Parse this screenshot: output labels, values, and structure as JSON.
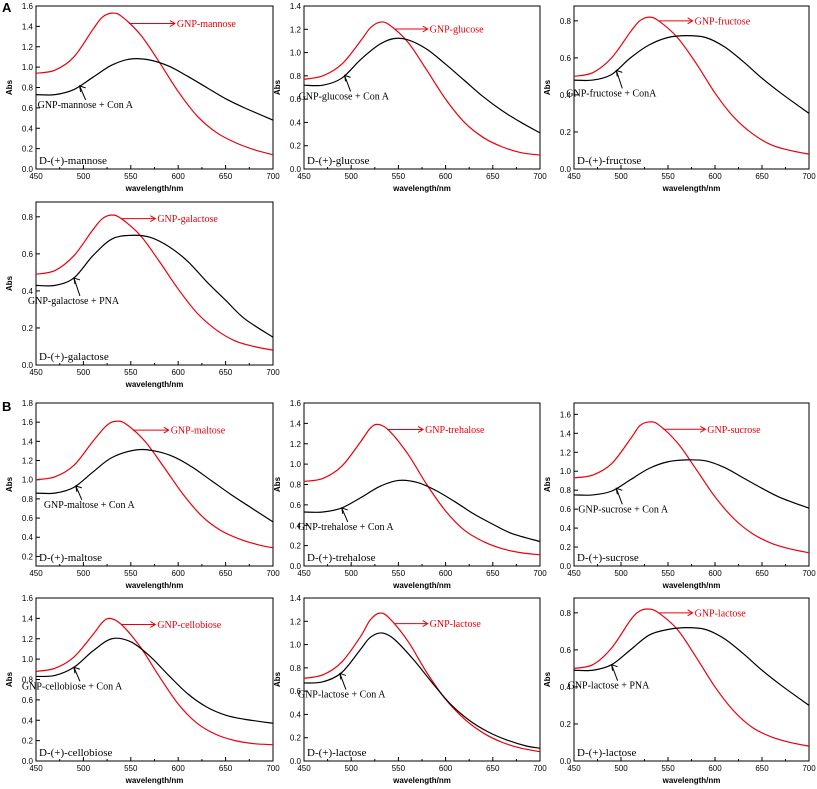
{
  "colors": {
    "free": "#e8000b",
    "bound": "#000000",
    "axis": "#000000"
  },
  "figure": {
    "panel_labels": [
      "A",
      "B"
    ]
  },
  "chart_data": [
    {
      "type": "line",
      "panel": "A",
      "sugar_label": "D-(+)-mannose",
      "xlabel": "wavelength/nm",
      "ylabel": "Abs",
      "xlim": [
        450,
        700
      ],
      "ylim": [
        0.0,
        1.6
      ],
      "xticks": [
        450,
        500,
        550,
        600,
        650,
        700
      ],
      "yticks": [
        0.0,
        0.2,
        0.4,
        0.6,
        0.8,
        1.0,
        1.2,
        1.4,
        1.6
      ],
      "series": [
        {
          "name": "GNP-mannose",
          "x": [
            450,
            470,
            490,
            510,
            520,
            530,
            540,
            560,
            580,
            600,
            620,
            640,
            660,
            680,
            700
          ],
          "y": [
            0.94,
            0.97,
            1.1,
            1.37,
            1.49,
            1.53,
            1.5,
            1.32,
            1.05,
            0.76,
            0.52,
            0.36,
            0.26,
            0.19,
            0.14
          ]
        },
        {
          "name": "GNP-mannose + Con A",
          "x": [
            450,
            470,
            490,
            510,
            530,
            550,
            570,
            590,
            610,
            630,
            650,
            670,
            700
          ],
          "y": [
            0.73,
            0.73,
            0.78,
            0.9,
            1.02,
            1.08,
            1.07,
            1.01,
            0.91,
            0.8,
            0.69,
            0.6,
            0.48
          ]
        }
      ]
    },
    {
      "type": "line",
      "panel": "A",
      "sugar_label": "D-(+)-glucose",
      "xlabel": "wavelength/nm",
      "ylabel": "Abs",
      "xlim": [
        450,
        700
      ],
      "ylim": [
        0.0,
        1.4
      ],
      "xticks": [
        450,
        500,
        550,
        600,
        650,
        700
      ],
      "yticks": [
        0.0,
        0.2,
        0.4,
        0.6,
        0.8,
        1.0,
        1.2,
        1.4
      ],
      "series": [
        {
          "name": "GNP-glucose",
          "x": [
            450,
            470,
            490,
            510,
            520,
            530,
            540,
            560,
            580,
            600,
            620,
            640,
            660,
            680,
            700
          ],
          "y": [
            0.77,
            0.8,
            0.9,
            1.1,
            1.21,
            1.26,
            1.24,
            1.09,
            0.85,
            0.6,
            0.4,
            0.27,
            0.19,
            0.14,
            0.12
          ]
        },
        {
          "name": "GNP-glucose + Con A",
          "x": [
            450,
            470,
            490,
            510,
            530,
            545,
            560,
            580,
            600,
            620,
            640,
            660,
            680,
            700
          ],
          "y": [
            0.72,
            0.72,
            0.78,
            0.94,
            1.07,
            1.12,
            1.11,
            1.03,
            0.9,
            0.76,
            0.62,
            0.5,
            0.4,
            0.31
          ]
        }
      ]
    },
    {
      "type": "line",
      "panel": "A",
      "sugar_label": "D-(+)-fructose",
      "xlabel": "wavelength/nm",
      "ylabel": "Abs",
      "xlim": [
        450,
        700
      ],
      "ylim": [
        0.0,
        0.88
      ],
      "xticks": [
        450,
        500,
        550,
        600,
        650,
        700
      ],
      "yticks": [
        0.0,
        0.2,
        0.4,
        0.6,
        0.8
      ],
      "series": [
        {
          "name": "GNP-fructose",
          "x": [
            450,
            470,
            490,
            510,
            520,
            530,
            540,
            560,
            580,
            600,
            620,
            640,
            660,
            680,
            700
          ],
          "y": [
            0.5,
            0.52,
            0.6,
            0.74,
            0.8,
            0.82,
            0.8,
            0.71,
            0.57,
            0.41,
            0.28,
            0.19,
            0.13,
            0.1,
            0.08
          ]
        },
        {
          "name": "GNP-fructose + ConA",
          "x": [
            450,
            470,
            490,
            510,
            530,
            550,
            570,
            590,
            610,
            630,
            650,
            670,
            700
          ],
          "y": [
            0.48,
            0.48,
            0.51,
            0.6,
            0.67,
            0.71,
            0.72,
            0.71,
            0.66,
            0.58,
            0.49,
            0.41,
            0.3
          ]
        }
      ]
    },
    {
      "type": "line",
      "panel": "A",
      "sugar_label": "D-(+)-galactose",
      "xlabel": "wavelength/nm",
      "ylabel": "Abs",
      "xlim": [
        450,
        700
      ],
      "ylim": [
        0.0,
        0.88
      ],
      "xticks": [
        450,
        500,
        550,
        600,
        650,
        700
      ],
      "yticks": [
        0.0,
        0.2,
        0.4,
        0.6,
        0.8
      ],
      "series": [
        {
          "name": "GNP-galactose",
          "x": [
            450,
            470,
            490,
            510,
            520,
            530,
            540,
            560,
            580,
            600,
            620,
            640,
            660,
            680,
            700
          ],
          "y": [
            0.49,
            0.51,
            0.59,
            0.73,
            0.79,
            0.81,
            0.79,
            0.7,
            0.56,
            0.41,
            0.28,
            0.19,
            0.13,
            0.1,
            0.08
          ]
        },
        {
          "name": "GNP-galactose + PNA",
          "x": [
            450,
            470,
            490,
            510,
            530,
            550,
            570,
            590,
            610,
            630,
            650,
            670,
            700
          ],
          "y": [
            0.43,
            0.43,
            0.47,
            0.59,
            0.68,
            0.7,
            0.69,
            0.64,
            0.56,
            0.45,
            0.35,
            0.25,
            0.15
          ]
        }
      ]
    },
    {
      "type": "line",
      "panel": "B",
      "sugar_label": "D-(+)-maltose",
      "xlabel": "wavelength/nm",
      "ylabel": "Abs",
      "xlim": [
        450,
        700
      ],
      "ylim": [
        0.1,
        1.8
      ],
      "xticks": [
        450,
        500,
        550,
        600,
        650,
        700
      ],
      "yticks": [
        0.2,
        0.4,
        0.6,
        0.8,
        1.0,
        1.2,
        1.4,
        1.6,
        1.8
      ],
      "series": [
        {
          "name": "GNP-maltose",
          "x": [
            450,
            470,
            490,
            510,
            525,
            535,
            545,
            565,
            585,
            605,
            625,
            645,
            665,
            685,
            700
          ],
          "y": [
            1.0,
            1.03,
            1.15,
            1.4,
            1.57,
            1.61,
            1.58,
            1.4,
            1.13,
            0.85,
            0.62,
            0.47,
            0.38,
            0.32,
            0.29
          ]
        },
        {
          "name": "GNP-maltose + Con A",
          "x": [
            450,
            470,
            490,
            510,
            530,
            555,
            575,
            595,
            615,
            635,
            655,
            675,
            700
          ],
          "y": [
            0.86,
            0.86,
            0.92,
            1.08,
            1.23,
            1.31,
            1.3,
            1.24,
            1.13,
            0.99,
            0.85,
            0.72,
            0.56
          ]
        }
      ]
    },
    {
      "type": "line",
      "panel": "B",
      "sugar_label": "D-(+)-trehalose",
      "xlabel": "wavelength/nm",
      "ylabel": "Abs",
      "xlim": [
        450,
        700
      ],
      "ylim": [
        0.0,
        1.6
      ],
      "xticks": [
        450,
        500,
        550,
        600,
        650,
        700
      ],
      "yticks": [
        0.0,
        0.2,
        0.4,
        0.6,
        0.8,
        1.0,
        1.2,
        1.4,
        1.6
      ],
      "series": [
        {
          "name": "GNP-trehalose",
          "x": [
            450,
            470,
            490,
            510,
            520,
            528,
            540,
            560,
            580,
            600,
            620,
            640,
            660,
            680,
            700
          ],
          "y": [
            0.83,
            0.86,
            0.98,
            1.22,
            1.35,
            1.39,
            1.33,
            1.1,
            0.8,
            0.54,
            0.35,
            0.24,
            0.17,
            0.13,
            0.11
          ]
        },
        {
          "name": "GNP-trehalose + Con A",
          "x": [
            450,
            470,
            490,
            510,
            530,
            550,
            570,
            590,
            610,
            630,
            650,
            670,
            700
          ],
          "y": [
            0.53,
            0.53,
            0.57,
            0.67,
            0.78,
            0.84,
            0.82,
            0.74,
            0.63,
            0.51,
            0.41,
            0.32,
            0.24
          ]
        }
      ]
    },
    {
      "type": "line",
      "panel": "B",
      "sugar_label": "D-(+)-sucrose",
      "xlabel": "wavelength/nm",
      "ylabel": "Abs",
      "xlim": [
        450,
        700
      ],
      "ylim": [
        0.0,
        1.72
      ],
      "xticks": [
        450,
        500,
        550,
        600,
        650,
        700
      ],
      "yticks": [
        0.0,
        0.2,
        0.4,
        0.6,
        0.8,
        1.0,
        1.2,
        1.4,
        1.6
      ],
      "series": [
        {
          "name": "GNP-sucrose",
          "x": [
            450,
            470,
            490,
            510,
            520,
            530,
            540,
            560,
            580,
            600,
            620,
            640,
            660,
            680,
            700
          ],
          "y": [
            0.93,
            0.96,
            1.08,
            1.34,
            1.48,
            1.52,
            1.49,
            1.3,
            1.02,
            0.73,
            0.5,
            0.34,
            0.24,
            0.18,
            0.14
          ]
        },
        {
          "name": "GNP-sucrose + Con A",
          "x": [
            450,
            470,
            490,
            510,
            530,
            550,
            570,
            590,
            610,
            630,
            650,
            670,
            700
          ],
          "y": [
            0.75,
            0.75,
            0.79,
            0.91,
            1.03,
            1.1,
            1.12,
            1.11,
            1.04,
            0.93,
            0.82,
            0.72,
            0.61
          ]
        }
      ]
    },
    {
      "type": "line",
      "panel": "B",
      "sugar_label": "D-(+)-cellobiose",
      "xlabel": "wavelength/nm",
      "ylabel": "Abs",
      "xlim": [
        450,
        700
      ],
      "ylim": [
        0.0,
        1.6
      ],
      "xticks": [
        450,
        500,
        550,
        600,
        650,
        700
      ],
      "yticks": [
        0.0,
        0.2,
        0.4,
        0.6,
        0.8,
        1.0,
        1.2,
        1.4,
        1.6
      ],
      "series": [
        {
          "name": "GNP-cellobiose",
          "x": [
            450,
            470,
            490,
            510,
            520,
            528,
            540,
            560,
            580,
            600,
            620,
            640,
            660,
            680,
            700
          ],
          "y": [
            0.88,
            0.91,
            1.02,
            1.24,
            1.36,
            1.4,
            1.34,
            1.12,
            0.83,
            0.56,
            0.37,
            0.26,
            0.2,
            0.17,
            0.16
          ]
        },
        {
          "name": "GNP-cellobiose + Con A",
          "x": [
            450,
            470,
            490,
            510,
            530,
            550,
            570,
            590,
            610,
            630,
            650,
            670,
            700
          ],
          "y": [
            0.83,
            0.84,
            0.92,
            1.08,
            1.2,
            1.17,
            1.03,
            0.84,
            0.66,
            0.53,
            0.45,
            0.41,
            0.37
          ]
        }
      ]
    },
    {
      "type": "line",
      "panel": "B",
      "sugar_label": "D-(+)-lactose",
      "xlabel": "wavelength/nm",
      "ylabel": "Abs",
      "xlim": [
        450,
        700
      ],
      "ylim": [
        0.0,
        1.4
      ],
      "xticks": [
        450,
        500,
        550,
        600,
        650,
        700
      ],
      "yticks": [
        0.0,
        0.2,
        0.4,
        0.6,
        0.8,
        1.0,
        1.2,
        1.4
      ],
      "series": [
        {
          "name": "GNP-lactose",
          "x": [
            450,
            470,
            490,
            510,
            520,
            530,
            540,
            560,
            580,
            600,
            620,
            640,
            660,
            680,
            700
          ],
          "y": [
            0.71,
            0.74,
            0.85,
            1.07,
            1.21,
            1.27,
            1.23,
            1.03,
            0.76,
            0.53,
            0.36,
            0.24,
            0.16,
            0.11,
            0.08
          ]
        },
        {
          "name": "GNP-lactose + Con A",
          "x": [
            450,
            470,
            490,
            510,
            520,
            532,
            545,
            565,
            585,
            605,
            625,
            645,
            665,
            685,
            700
          ],
          "y": [
            0.67,
            0.68,
            0.76,
            0.96,
            1.06,
            1.1,
            1.05,
            0.88,
            0.68,
            0.49,
            0.35,
            0.25,
            0.18,
            0.13,
            0.11
          ]
        }
      ]
    },
    {
      "type": "line",
      "panel": "B",
      "sugar_label": "D-(+)-lactose",
      "xlabel": "wavelength/nm",
      "ylabel": "Abs",
      "xlim": [
        450,
        700
      ],
      "ylim": [
        0.0,
        0.88
      ],
      "xticks": [
        450,
        500,
        550,
        600,
        650,
        700
      ],
      "yticks": [
        0.0,
        0.2,
        0.4,
        0.6,
        0.8
      ],
      "series": [
        {
          "name": "GNP-lactose",
          "x": [
            450,
            470,
            490,
            510,
            520,
            530,
            540,
            560,
            580,
            600,
            620,
            640,
            660,
            680,
            700
          ],
          "y": [
            0.5,
            0.52,
            0.61,
            0.76,
            0.81,
            0.82,
            0.8,
            0.71,
            0.56,
            0.4,
            0.27,
            0.18,
            0.13,
            0.1,
            0.08
          ]
        },
        {
          "name": "GNP-lactose + PNA",
          "x": [
            450,
            470,
            490,
            510,
            530,
            550,
            570,
            590,
            610,
            630,
            650,
            670,
            700
          ],
          "y": [
            0.49,
            0.49,
            0.52,
            0.6,
            0.68,
            0.71,
            0.72,
            0.71,
            0.66,
            0.58,
            0.49,
            0.41,
            0.3
          ]
        }
      ]
    }
  ]
}
